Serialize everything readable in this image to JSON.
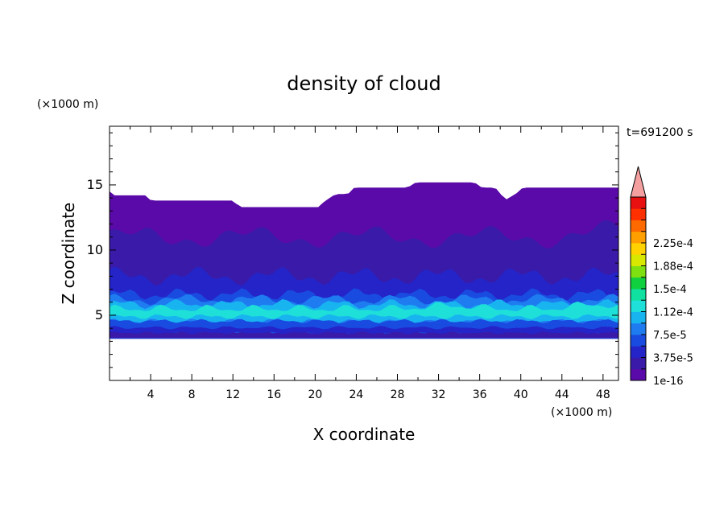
{
  "chart_data": {
    "type": "contour",
    "title": "density of cloud",
    "time_label": "t=691200 s",
    "xlabel": "X coordinate",
    "ylabel": "Z coordinate",
    "x_unit": "(×1000 m)",
    "y_unit": "(×1000 m)",
    "xlim": [
      0,
      49.5
    ],
    "ylim": [
      0,
      19.5
    ],
    "x_ticks": [
      4,
      8,
      12,
      16,
      20,
      24,
      28,
      32,
      36,
      40,
      44,
      48
    ],
    "y_ticks": [
      5,
      10,
      15
    ],
    "field_bottom_z": 3.2,
    "cloud_top": {
      "x": [
        0,
        0.3,
        1,
        3.7,
        4,
        12,
        12.7,
        20.3,
        21,
        22,
        23.2,
        23.8,
        29,
        29.8,
        35.5,
        36.2,
        37.5,
        38,
        38.4,
        38.8,
        39.5,
        40.2,
        49.5
      ],
      "z": [
        14.5,
        14.2,
        14.2,
        14.2,
        13.8,
        13.8,
        13.3,
        13.3,
        13.8,
        14.3,
        14.3,
        14.8,
        14.8,
        15.2,
        15.2,
        14.8,
        14.8,
        14.4,
        13.8,
        14.0,
        14.3,
        14.8,
        14.8
      ]
    },
    "colorbar": {
      "levels": [
        "1e-16",
        "3.75e-5",
        "7.5e-5",
        "1.12e-4",
        "1.5e-4",
        "1.88e-4",
        "2.25e-4"
      ],
      "colors": [
        "#5a0aa8",
        "#3a1aa8",
        "#2424c8",
        "#1a4be0",
        "#1e7cf0",
        "#18b4f0",
        "#1ee0d8",
        "#10e0a0",
        "#10d040",
        "#7ee010",
        "#d8e800",
        "#ffd200",
        "#ffa000",
        "#ff6a00",
        "#ff3000",
        "#e81010"
      ],
      "overflow_color": "#f4a0a0"
    }
  }
}
